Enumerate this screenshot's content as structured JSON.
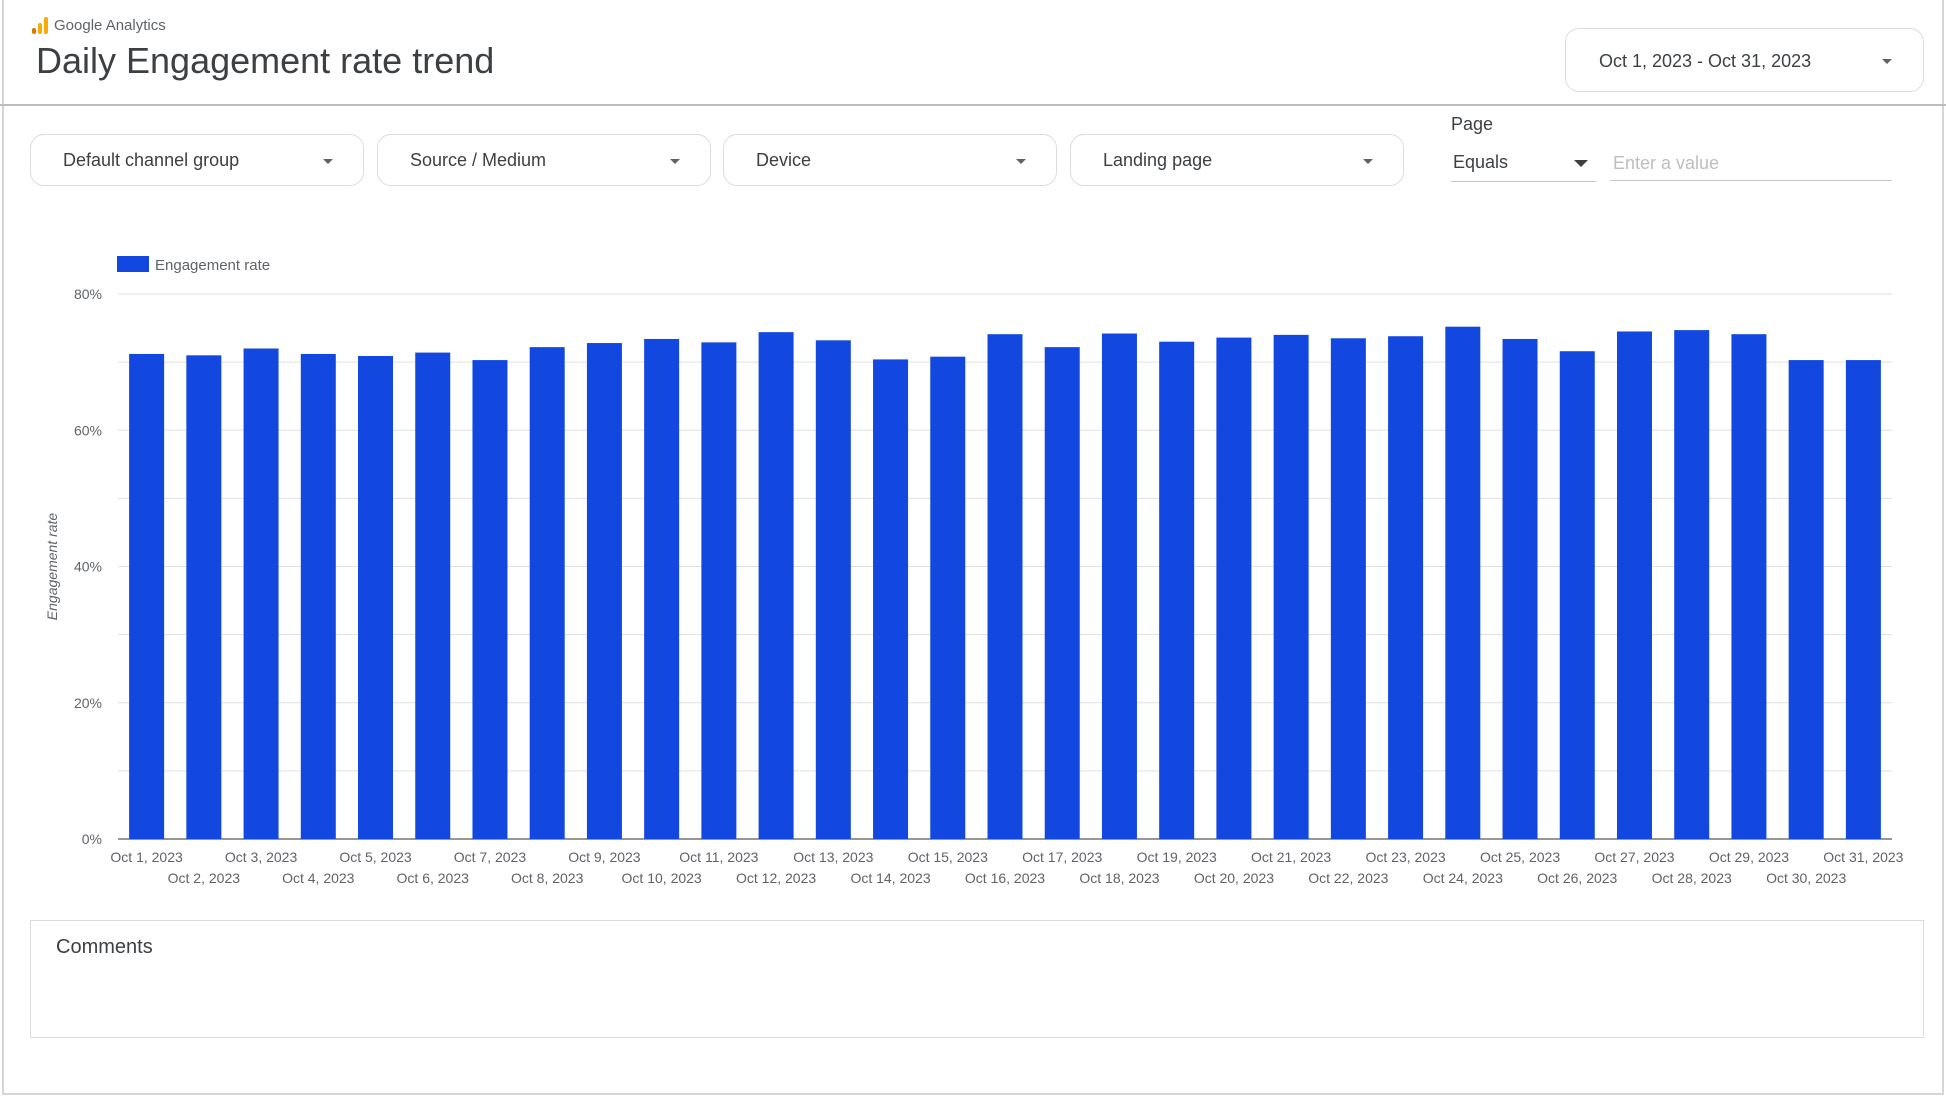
{
  "header": {
    "brand": "Google Analytics",
    "title": "Daily Engagement rate trend",
    "date_range": "Oct 1, 2023 - Oct 31, 2023"
  },
  "filters": {
    "channel_group": "Default channel group",
    "source_medium": "Source / Medium",
    "device": "Device",
    "landing_page": "Landing page",
    "page_label": "Page",
    "page_operator": "Equals",
    "page_value_placeholder": "Enter a value"
  },
  "comments": {
    "label": "Comments"
  },
  "colors": {
    "bar": "#1248e0",
    "grid": "#e0e0e0",
    "axis": "#5f6368"
  },
  "chart_data": {
    "type": "bar",
    "ylabel": "Engagement rate",
    "xlabel": "",
    "ylim": [
      0,
      0.8
    ],
    "yticks": [
      "0%",
      "20%",
      "40%",
      "60%",
      "80%"
    ],
    "legend_position": "top-left",
    "grid": true,
    "categories": [
      "Oct 1, 2023",
      "Oct 2, 2023",
      "Oct 3, 2023",
      "Oct 4, 2023",
      "Oct 5, 2023",
      "Oct 6, 2023",
      "Oct 7, 2023",
      "Oct 8, 2023",
      "Oct 9, 2023",
      "Oct 10, 2023",
      "Oct 11, 2023",
      "Oct 12, 2023",
      "Oct 13, 2023",
      "Oct 14, 2023",
      "Oct 15, 2023",
      "Oct 16, 2023",
      "Oct 17, 2023",
      "Oct 18, 2023",
      "Oct 19, 2023",
      "Oct 20, 2023",
      "Oct 21, 2023",
      "Oct 22, 2023",
      "Oct 23, 2023",
      "Oct 24, 2023",
      "Oct 25, 2023",
      "Oct 26, 2023",
      "Oct 27, 2023",
      "Oct 28, 2023",
      "Oct 29, 2023",
      "Oct 30, 2023",
      "Oct 31, 2023"
    ],
    "series": [
      {
        "name": "Engagement rate",
        "values": [
          0.712,
          0.71,
          0.72,
          0.712,
          0.709,
          0.714,
          0.703,
          0.722,
          0.728,
          0.734,
          0.729,
          0.744,
          0.732,
          0.704,
          0.708,
          0.741,
          0.722,
          0.742,
          0.73,
          0.736,
          0.74,
          0.735,
          0.738,
          0.752,
          0.734,
          0.716,
          0.745,
          0.747,
          0.741,
          0.703,
          0.703
        ]
      }
    ]
  }
}
